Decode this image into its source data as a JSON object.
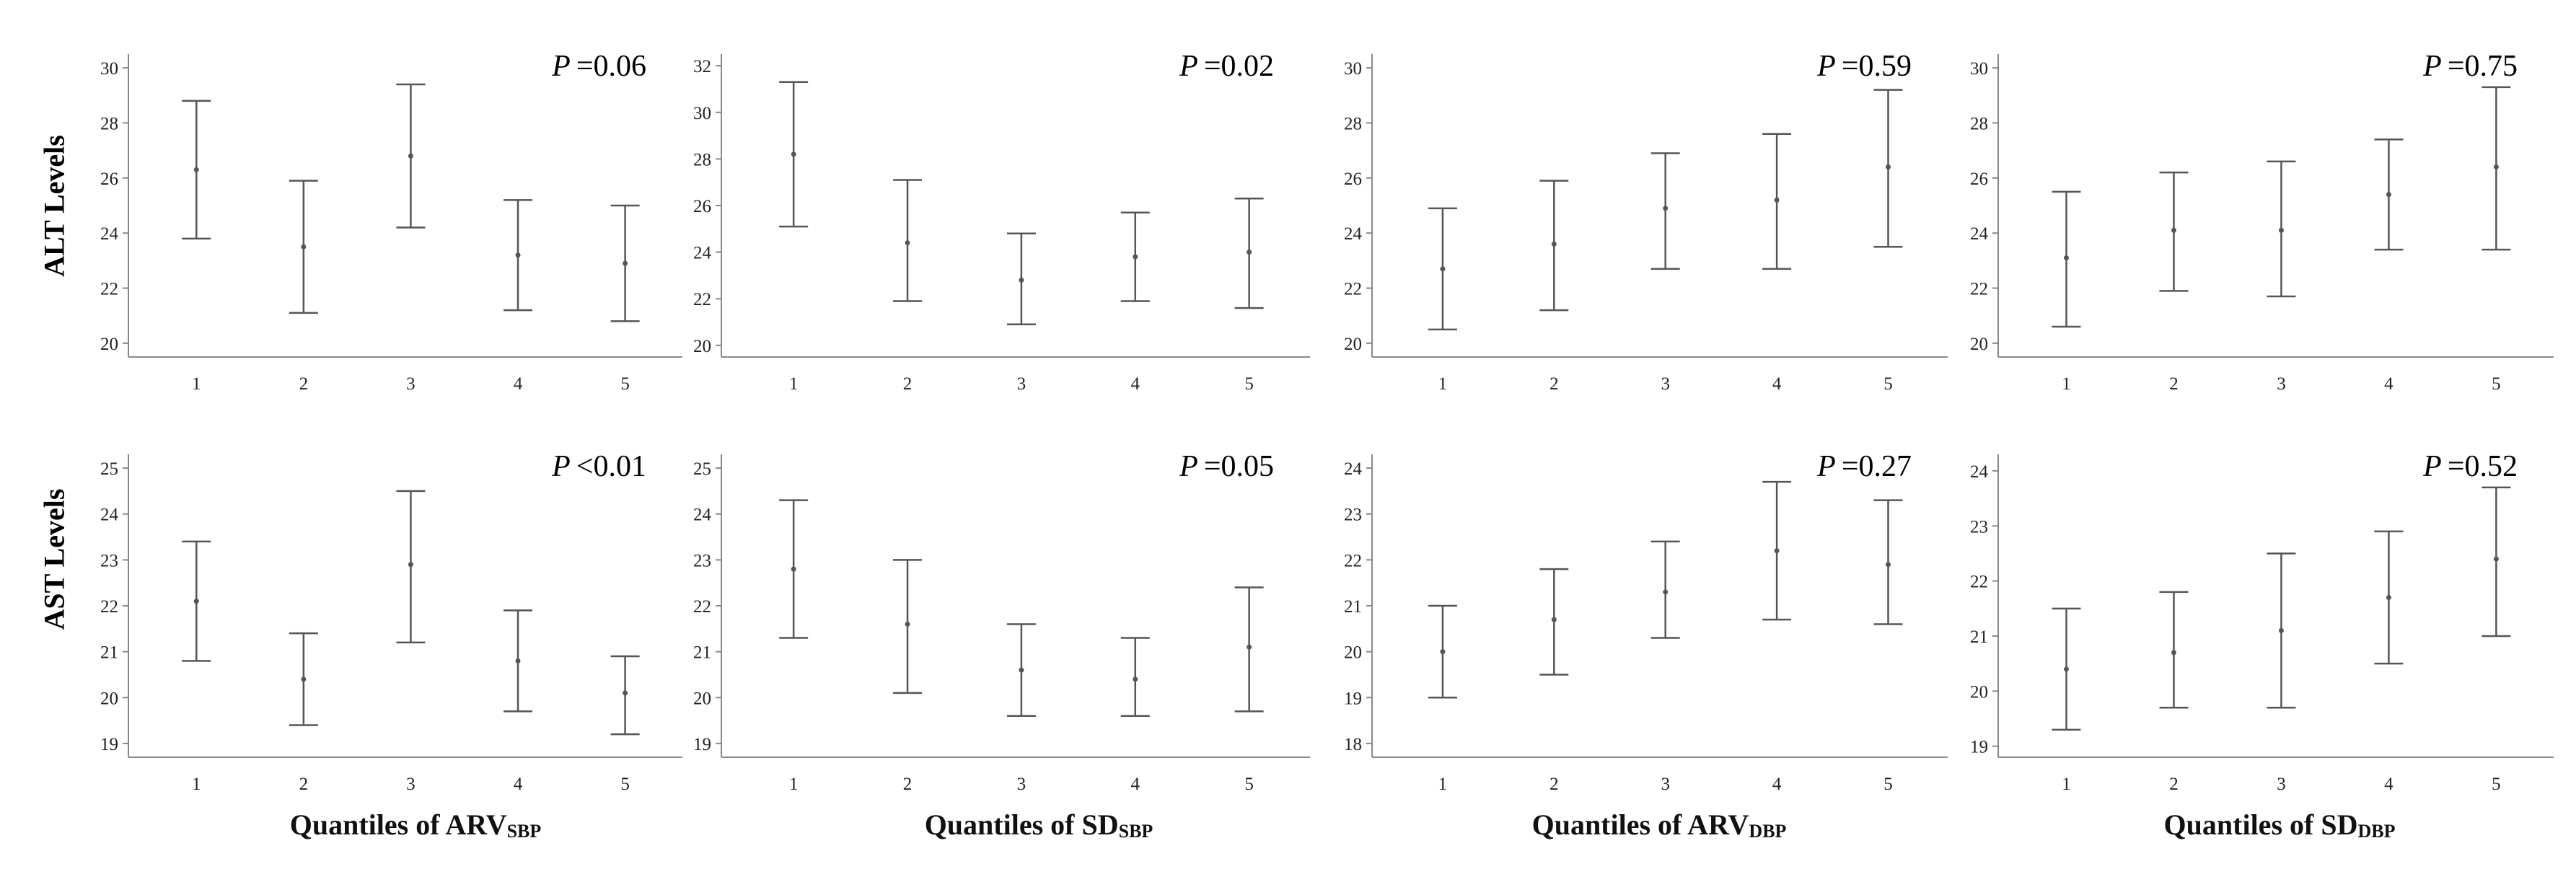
{
  "row_labels": [
    "ALT Levels",
    "AST Levels"
  ],
  "column_labels": [
    {
      "main": "Quantiles of ARV",
      "sub": "SBP"
    },
    {
      "main": "Quantiles of SD",
      "sub": "SBP"
    },
    {
      "main": "Quantiles of ARV",
      "sub": "DBP"
    },
    {
      "main": "Quantiles of SD",
      "sub": "DBP"
    }
  ],
  "colors": {
    "axis": "#888888",
    "error_bar": "#555555",
    "text": "#222222"
  },
  "chart_data": [
    {
      "type": "errorbar",
      "row": "ALT Levels",
      "column": "Quantiles of ARVSBP",
      "x": [
        1,
        2,
        3,
        4,
        5
      ],
      "xticks": [
        "1",
        "2",
        "3",
        "4",
        "5"
      ],
      "yticks": [
        20,
        22,
        24,
        26,
        28,
        30
      ],
      "ylim": [
        19.5,
        30.5
      ],
      "mean": [
        26.3,
        23.5,
        26.8,
        23.2,
        22.9
      ],
      "lower": [
        23.8,
        21.1,
        24.2,
        21.2,
        20.8
      ],
      "upper": [
        28.8,
        25.9,
        29.4,
        25.2,
        25.0
      ],
      "p_label": "P",
      "p_value": "=0.06",
      "grid": false
    },
    {
      "type": "errorbar",
      "row": "ALT Levels",
      "column": "Quantiles of SDSBP",
      "x": [
        1,
        2,
        3,
        4,
        5
      ],
      "xticks": [
        "1",
        "2",
        "3",
        "4",
        "5"
      ],
      "yticks": [
        20,
        22,
        24,
        26,
        28,
        30,
        32
      ],
      "ylim": [
        19.5,
        32.5
      ],
      "mean": [
        28.2,
        24.4,
        22.8,
        23.8,
        24.0
      ],
      "lower": [
        25.1,
        21.9,
        20.9,
        21.9,
        21.6
      ],
      "upper": [
        31.3,
        27.1,
        24.8,
        25.7,
        26.3
      ],
      "p_label": "P",
      "p_value": "=0.02",
      "grid": false
    },
    {
      "type": "errorbar",
      "row": "ALT Levels",
      "column": "Quantiles of ARVDBP",
      "x": [
        1,
        2,
        3,
        4,
        5
      ],
      "xticks": [
        "1",
        "2",
        "3",
        "4",
        "5"
      ],
      "yticks": [
        20,
        22,
        24,
        26,
        28,
        30
      ],
      "ylim": [
        19.5,
        30.5
      ],
      "mean": [
        22.7,
        23.6,
        24.9,
        25.2,
        26.4
      ],
      "lower": [
        20.5,
        21.2,
        22.7,
        22.7,
        23.5
      ],
      "upper": [
        24.9,
        25.9,
        26.9,
        27.6,
        29.2
      ],
      "p_label": "P",
      "p_value": "=0.59",
      "grid": false
    },
    {
      "type": "errorbar",
      "row": "ALT Levels",
      "column": "Quantiles of SDDBP",
      "x": [
        1,
        2,
        3,
        4,
        5
      ],
      "xticks": [
        "1",
        "2",
        "3",
        "4",
        "5"
      ],
      "yticks": [
        20,
        22,
        24,
        26,
        28,
        30
      ],
      "ylim": [
        19.5,
        30.5
      ],
      "mean": [
        23.1,
        24.1,
        24.1,
        25.4,
        26.4
      ],
      "lower": [
        20.6,
        21.9,
        21.7,
        23.4,
        23.4
      ],
      "upper": [
        25.5,
        26.2,
        26.6,
        27.4,
        29.3
      ],
      "p_label": "P",
      "p_value": "=0.75",
      "grid": false
    },
    {
      "type": "errorbar",
      "row": "AST Levels",
      "column": "Quantiles of ARVSBP",
      "x": [
        1,
        2,
        3,
        4,
        5
      ],
      "xticks": [
        "1",
        "2",
        "3",
        "4",
        "5"
      ],
      "yticks": [
        19,
        20,
        21,
        22,
        23,
        24,
        25
      ],
      "ylim": [
        18.7,
        25.3
      ],
      "mean": [
        22.1,
        20.4,
        22.9,
        20.8,
        20.1
      ],
      "lower": [
        20.8,
        19.4,
        21.2,
        19.7,
        19.2
      ],
      "upper": [
        23.4,
        21.4,
        24.5,
        21.9,
        20.9
      ],
      "p_label": "P",
      "p_value": "<0.01",
      "grid": false
    },
    {
      "type": "errorbar",
      "row": "AST Levels",
      "column": "Quantiles of SDSBP",
      "x": [
        1,
        2,
        3,
        4,
        5
      ],
      "xticks": [
        "1",
        "2",
        "3",
        "4",
        "5"
      ],
      "yticks": [
        19,
        20,
        21,
        22,
        23,
        24,
        25
      ],
      "ylim": [
        18.7,
        25.3
      ],
      "mean": [
        22.8,
        21.6,
        20.6,
        20.4,
        21.1
      ],
      "lower": [
        21.3,
        20.1,
        19.6,
        19.6,
        19.7
      ],
      "upper": [
        24.3,
        23.0,
        21.6,
        21.3,
        22.4
      ],
      "p_label": "P",
      "p_value": "=0.05",
      "grid": false
    },
    {
      "type": "errorbar",
      "row": "AST Levels",
      "column": "Quantiles of ARVDBP",
      "x": [
        1,
        2,
        3,
        4,
        5
      ],
      "xticks": [
        "1",
        "2",
        "3",
        "4",
        "5"
      ],
      "yticks": [
        18,
        19,
        20,
        21,
        22,
        23,
        24
      ],
      "ylim": [
        17.7,
        24.3
      ],
      "mean": [
        20.0,
        20.7,
        21.3,
        22.2,
        21.9
      ],
      "lower": [
        19.0,
        19.5,
        20.3,
        20.7,
        20.6
      ],
      "upper": [
        21.0,
        21.8,
        22.4,
        23.7,
        23.3
      ],
      "p_label": "P",
      "p_value": "=0.27",
      "grid": false
    },
    {
      "type": "errorbar",
      "row": "AST Levels",
      "column": "Quantiles of SDDBP",
      "x": [
        1,
        2,
        3,
        4,
        5
      ],
      "xticks": [
        "1",
        "2",
        "3",
        "4",
        "5"
      ],
      "yticks": [
        19,
        20,
        21,
        22,
        23,
        24
      ],
      "ylim": [
        18.8,
        24.3
      ],
      "mean": [
        20.4,
        20.7,
        21.1,
        21.7,
        22.4
      ],
      "lower": [
        19.3,
        19.7,
        19.7,
        20.5,
        21.0
      ],
      "upper": [
        21.5,
        21.8,
        22.5,
        22.9,
        23.7
      ],
      "p_label": "P",
      "p_value": "=0.52",
      "grid": false
    }
  ]
}
